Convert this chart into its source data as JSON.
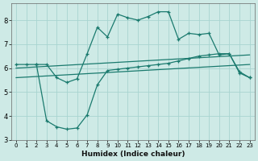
{
  "xlabel": "Humidex (Indice chaleur)",
  "bg_color": "#ceeae6",
  "grid_color": "#a8d4d0",
  "line_color": "#1a7a6e",
  "xlim": [
    -0.5,
    23.5
  ],
  "ylim": [
    3.0,
    8.7
  ],
  "yticks": [
    3,
    4,
    5,
    6,
    7,
    8
  ],
  "xticks": [
    0,
    1,
    2,
    3,
    4,
    5,
    6,
    7,
    8,
    9,
    10,
    11,
    12,
    13,
    14,
    15,
    16,
    17,
    18,
    19,
    20,
    21,
    22,
    23
  ],
  "curve1_x": [
    0,
    1,
    2,
    3,
    4,
    5,
    6,
    7,
    8,
    9,
    10,
    11,
    12,
    13,
    14,
    15,
    16,
    17,
    18,
    19,
    20,
    21,
    22,
    23
  ],
  "curve1_y": [
    6.15,
    6.15,
    6.15,
    6.15,
    5.6,
    5.4,
    5.55,
    6.6,
    7.7,
    7.3,
    8.25,
    8.1,
    8.0,
    8.15,
    8.35,
    8.35,
    7.2,
    7.45,
    7.4,
    7.45,
    6.55,
    6.6,
    5.85,
    5.6
  ],
  "curve2_x": [
    2,
    3,
    4,
    5,
    6,
    7,
    8,
    9,
    10,
    11,
    12,
    13,
    14,
    15,
    16,
    17,
    18,
    19,
    20,
    21,
    22,
    23
  ],
  "curve2_y": [
    6.15,
    3.8,
    3.55,
    3.45,
    3.5,
    4.05,
    5.3,
    5.9,
    5.95,
    6.0,
    6.05,
    6.1,
    6.15,
    6.2,
    6.3,
    6.4,
    6.5,
    6.55,
    6.6,
    6.6,
    5.8,
    5.6
  ],
  "line3_x": [
    0,
    23
  ],
  "line3_y": [
    6.0,
    6.55
  ],
  "line4_x": [
    0,
    23
  ],
  "line4_y": [
    5.6,
    6.15
  ]
}
